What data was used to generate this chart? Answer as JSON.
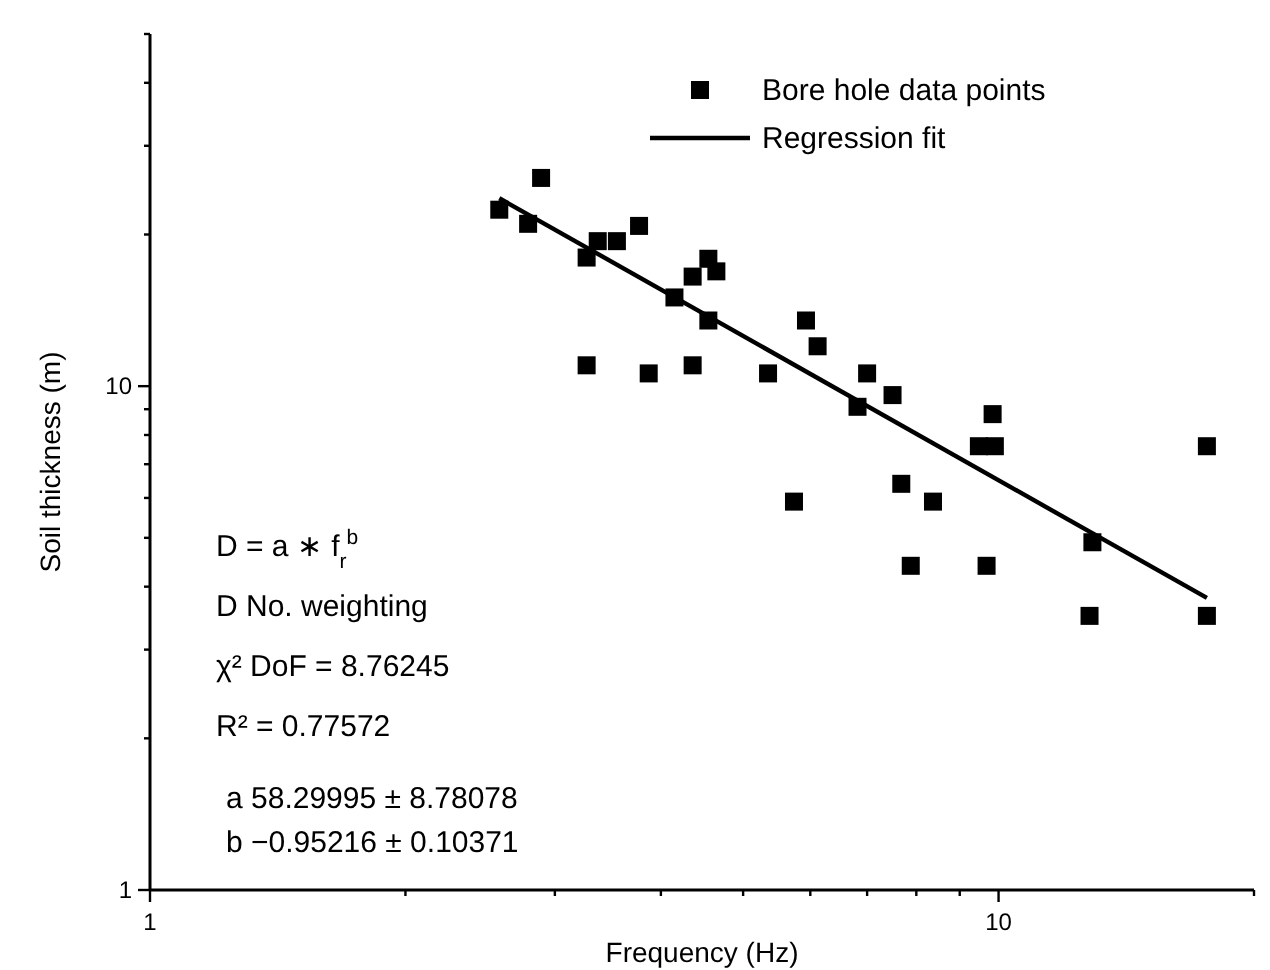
{
  "chart_data": {
    "type": "scatter",
    "xlabel": "Frequency (Hz)",
    "ylabel": "Soil thickness (m)",
    "log": "xy",
    "grid": false,
    "legend": "top right",
    "xlim": [
      1,
      20
    ],
    "xticks": [
      1,
      {
        "value": 2,
        "label": null
      },
      {
        "value": 3,
        "label": null
      },
      {
        "value": 4,
        "label": null
      },
      {
        "value": 5,
        "label": null
      },
      {
        "value": 6,
        "label": null
      },
      {
        "value": 7,
        "label": null
      },
      {
        "value": 8,
        "label": null
      },
      {
        "value": 9,
        "label": null
      },
      10,
      {
        "value": 20,
        "label": null
      }
    ],
    "ylim": [
      1,
      50
    ],
    "yticks": [
      1,
      {
        "value": 2,
        "label": null
      },
      {
        "value": 3,
        "label": null
      },
      {
        "value": 4,
        "label": null
      },
      {
        "value": 5,
        "label": null
      },
      {
        "value": 6,
        "label": null
      },
      {
        "value": 7,
        "label": null
      },
      {
        "value": 8,
        "label": null
      },
      {
        "value": 9,
        "label": null
      },
      10,
      {
        "value": 20,
        "label": null
      },
      {
        "value": 30,
        "label": null
      },
      {
        "value": 40,
        "label": null
      },
      {
        "value": 50,
        "label": null
      }
    ],
    "series": [
      {
        "name": "Bore hole data points",
        "marker": "square",
        "color": "#000000",
        "x": [
          2.58,
          2.79,
          2.89,
          3.27,
          3.37,
          3.55,
          3.77,
          3.27,
          3.87,
          4.15,
          4.36,
          4.55,
          4.65,
          4.55,
          4.36,
          5.35,
          5.93,
          6.12,
          7.0,
          6.82,
          7.5,
          9.84,
          9.48,
          9.9,
          17.6,
          5.74,
          7.68,
          8.37,
          7.88,
          9.68,
          12.9,
          12.8,
          17.6
        ],
        "values": [
          22.4,
          21.0,
          25.9,
          18.0,
          19.4,
          19.4,
          20.8,
          11.0,
          10.6,
          15.0,
          16.5,
          17.9,
          16.9,
          13.5,
          11.0,
          10.6,
          13.5,
          12.0,
          10.6,
          9.1,
          9.6,
          8.8,
          7.6,
          7.6,
          7.6,
          5.9,
          6.4,
          5.9,
          4.4,
          4.4,
          4.9,
          3.5,
          3.5
        ]
      },
      {
        "name": "Regression fit",
        "type": "line",
        "marker": "none",
        "color": "#000000",
        "x": [
          2.58,
          17.6
        ],
        "values": [
          23.6,
          3.8
        ]
      }
    ],
    "annotations": [
      "D = a ∗ f$_{r}$$^{b}$",
      "D No. weighting",
      "χ² DoF = 8.76245",
      "R² = 0.77572",
      "a 58.29995 ± 8.78078",
      "b −0.95216 ± 0.10371"
    ]
  }
}
